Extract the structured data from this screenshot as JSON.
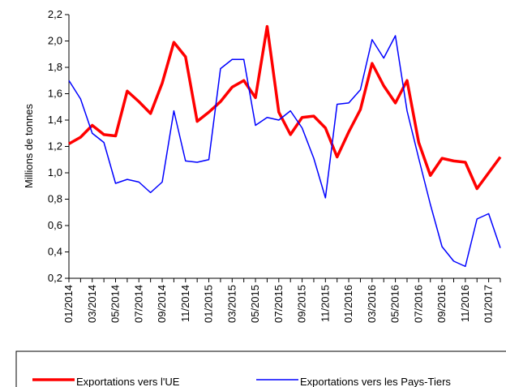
{
  "chart_data": {
    "type": "line",
    "y_label": "Millions de tonnes",
    "categories": [
      "01/2014",
      null,
      "03/2014",
      null,
      "05/2014",
      null,
      "07/2014",
      null,
      "09/2014",
      null,
      "11/2014",
      null,
      "01/2015",
      null,
      "03/2015",
      null,
      "05/2015",
      null,
      "07/2015",
      null,
      "09/2015",
      null,
      "11/2015",
      null,
      "01/2016",
      null,
      "03/2016",
      null,
      "05/2016",
      null,
      "07/2016",
      null,
      "09/2016",
      null,
      "11/2016",
      null,
      "01/2017",
      null
    ],
    "series": [
      {
        "name": "Exportations vers l'UE",
        "color": "#ff0000",
        "width": 3.5,
        "values": [
          1.22,
          1.27,
          1.36,
          1.29,
          1.28,
          1.62,
          1.54,
          1.45,
          1.68,
          1.99,
          1.88,
          1.39,
          1.46,
          1.54,
          1.65,
          1.7,
          1.57,
          2.11,
          1.46,
          1.29,
          1.42,
          1.43,
          1.34,
          1.12,
          1.31,
          1.48,
          1.83,
          1.66,
          1.53,
          1.7,
          1.23,
          0.98,
          1.11,
          1.09,
          1.08,
          0.88,
          1.0,
          1.12
        ]
      },
      {
        "name": "Exportations vers les Pays-Tiers",
        "color": "#0000ff",
        "width": 1.5,
        "values": [
          1.7,
          1.56,
          1.3,
          1.23,
          0.92,
          0.95,
          0.93,
          0.85,
          0.93,
          1.47,
          1.09,
          1.08,
          1.1,
          1.79,
          1.86,
          1.86,
          1.36,
          1.42,
          1.4,
          1.47,
          1.34,
          1.11,
          0.81,
          1.52,
          1.53,
          1.63,
          2.01,
          1.87,
          2.04,
          1.47,
          1.11,
          0.76,
          0.44,
          0.33,
          0.29,
          0.65,
          0.69,
          0.43
        ]
      }
    ],
    "ylim": [
      0.2,
      2.2
    ],
    "yticks": [
      {
        "value": 0.2,
        "label": "0,2"
      },
      {
        "value": 0.4,
        "label": "0,4"
      },
      {
        "value": 0.6,
        "label": "0,6"
      },
      {
        "value": 0.8,
        "label": "0,8"
      },
      {
        "value": 1.0,
        "label": "1,0"
      },
      {
        "value": 1.2,
        "label": "1,2"
      },
      {
        "value": 1.4,
        "label": "1,4"
      },
      {
        "value": 1.6,
        "label": "1,6"
      },
      {
        "value": 1.8,
        "label": "1,8"
      },
      {
        "value": 2.0,
        "label": "2,0"
      },
      {
        "value": 2.2,
        "label": "2,2"
      }
    ],
    "legend": "bottom"
  }
}
